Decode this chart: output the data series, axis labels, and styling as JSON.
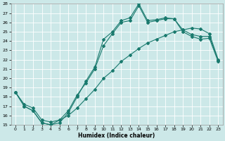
{
  "xlabel": "Humidex (Indice chaleur)",
  "bg_color": "#cce8e8",
  "grid_color": "#ffffff",
  "line_color": "#1a7a6e",
  "xlim": [
    -0.5,
    23.5
  ],
  "ylim": [
    15,
    28
  ],
  "yticks": [
    15,
    16,
    17,
    18,
    19,
    20,
    21,
    22,
    23,
    24,
    25,
    26,
    27,
    28
  ],
  "xticks": [
    0,
    1,
    2,
    3,
    4,
    5,
    6,
    7,
    8,
    9,
    10,
    11,
    12,
    13,
    14,
    15,
    16,
    17,
    18,
    19,
    20,
    21,
    22,
    23
  ],
  "line1_x": [
    0,
    1,
    2,
    3,
    4,
    5,
    6,
    7,
    8,
    9,
    10,
    11,
    12,
    13,
    14,
    15,
    16,
    17,
    18,
    19,
    20,
    21,
    22,
    23
  ],
  "line1_y": [
    18.5,
    17.0,
    16.5,
    15.2,
    15.0,
    15.2,
    16.3,
    18.0,
    19.7,
    21.2,
    24.2,
    25.0,
    26.2,
    26.5,
    28.0,
    26.2,
    26.3,
    26.5,
    26.4,
    25.2,
    24.7,
    24.5,
    24.5,
    22.0
  ],
  "line2_x": [
    0,
    1,
    2,
    3,
    4,
    5,
    6,
    7,
    8,
    9,
    10,
    11,
    12,
    13,
    14,
    15,
    16,
    17,
    18,
    19,
    20,
    21,
    22,
    23
  ],
  "line2_y": [
    18.5,
    17.0,
    16.5,
    15.2,
    15.0,
    15.5,
    16.5,
    18.2,
    19.5,
    21.0,
    23.5,
    24.8,
    26.0,
    26.2,
    27.8,
    26.0,
    26.2,
    26.4,
    26.4,
    25.0,
    24.5,
    24.2,
    24.3,
    21.8
  ],
  "line3_x": [
    0,
    1,
    2,
    3,
    4,
    5,
    6,
    7,
    8,
    9,
    10,
    11,
    12,
    13,
    14,
    15,
    16,
    17,
    18,
    19,
    20,
    21,
    22,
    23
  ],
  "line3_y": [
    18.5,
    17.2,
    16.8,
    15.5,
    15.3,
    15.5,
    16.0,
    16.8,
    17.8,
    18.8,
    20.0,
    20.8,
    21.8,
    22.5,
    23.2,
    23.8,
    24.2,
    24.6,
    25.0,
    25.2,
    25.4,
    25.3,
    24.8,
    22.0
  ]
}
